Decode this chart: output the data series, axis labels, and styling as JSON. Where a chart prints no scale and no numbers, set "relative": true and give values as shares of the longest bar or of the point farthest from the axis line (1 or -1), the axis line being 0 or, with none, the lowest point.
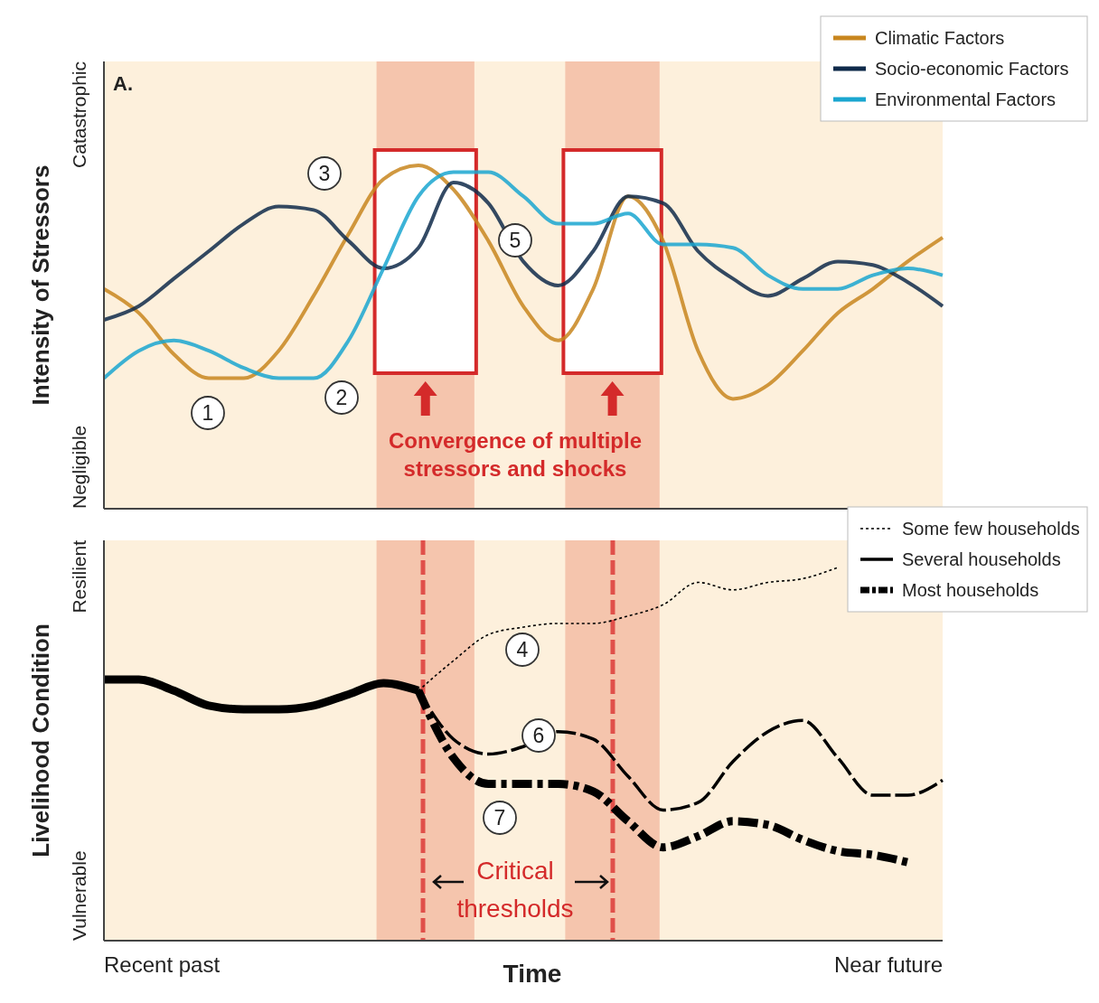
{
  "chart_data": [
    {
      "type": "line",
      "relative": true,
      "ylabel": "Intensity of Stressors",
      "legend": "top right",
      "grid": false,
      "categories": [
        null,
        null,
        null,
        null,
        null,
        null,
        null,
        null,
        null,
        null,
        null,
        null,
        null,
        null,
        null,
        null,
        null,
        null,
        null,
        null,
        null,
        null,
        null,
        null,
        null
      ],
      "series": [
        {
          "name": "Climatic Factors",
          "color": "#c8861e",
          "line_style": "solid",
          "values": [
            0.64,
            0.57,
            0.45,
            0.38,
            0.38,
            0.46,
            0.62,
            0.8,
            0.96,
            1,
            0.93,
            0.78,
            0.59,
            0.49,
            0.64,
            0.91,
            0.78,
            0.46,
            0.32,
            0.36,
            0.46,
            0.57,
            0.64,
            0.72,
            0.79
          ]
        },
        {
          "name": "Socio-economic Factors",
          "color": "#0f2a4a",
          "line_style": "solid",
          "values": [
            0.55,
            0.59,
            0.67,
            0.75,
            0.83,
            0.88,
            0.87,
            0.78,
            0.7,
            0.76,
            0.95,
            0.89,
            0.72,
            0.65,
            0.75,
            0.91,
            0.89,
            0.75,
            0.67,
            0.62,
            0.67,
            0.72,
            0.71,
            0.66,
            0.59
          ]
        },
        {
          "name": "Environmental Factors",
          "color": "#1aa6d0",
          "line_style": "solid",
          "values": [
            0.38,
            0.46,
            0.49,
            0.46,
            0.41,
            0.38,
            0.38,
            0.49,
            0.7,
            0.91,
            0.98,
            0.98,
            0.91,
            0.83,
            0.83,
            0.86,
            0.77,
            0.77,
            0.76,
            0.68,
            0.64,
            0.64,
            0.68,
            0.7,
            0.68
          ]
        }
      ],
      "annotations": [
        "A.",
        "Negligible",
        "Catastrophic",
        "Convergence of multiple stressors and shocks",
        "1",
        "2",
        "3",
        "5"
      ]
    },
    {
      "type": "line",
      "relative": true,
      "ylabel": "Livelihood Condition",
      "xlabel": "Time",
      "legend": "top right",
      "grid": false,
      "categories": [
        null,
        null,
        null,
        null,
        null,
        null,
        null,
        null,
        null,
        null,
        null,
        null,
        null,
        null,
        null,
        null,
        null,
        null,
        null,
        null,
        null,
        null,
        null,
        null,
        null
      ],
      "series": [
        {
          "color": "#000000",
          "line_style": "solid",
          "values": [
            0.7,
            0.7,
            0.67,
            0.63,
            0.62,
            0.62,
            0.63,
            0.66,
            0.69,
            0.67,
            null,
            null,
            null,
            null,
            null,
            null,
            null,
            null,
            null,
            null,
            null,
            null,
            null,
            null,
            null
          ]
        },
        {
          "name": "Some few households",
          "color": "#000000",
          "line_style": "dotted",
          "values": [
            null,
            null,
            null,
            null,
            null,
            null,
            null,
            null,
            null,
            0.67,
            0.75,
            0.82,
            0.84,
            0.85,
            0.85,
            0.87,
            0.9,
            0.96,
            0.94,
            0.96,
            0.97,
            1,
            null,
            null,
            null
          ]
        },
        {
          "name": "Several households",
          "color": "#000000",
          "line_style": "dashed",
          "values": [
            null,
            null,
            null,
            null,
            null,
            null,
            null,
            null,
            null,
            0.67,
            0.54,
            0.5,
            0.52,
            0.56,
            0.54,
            0.44,
            0.35,
            0.37,
            0.48,
            0.56,
            0.59,
            0.49,
            0.39,
            0.39,
            0.43
          ]
        },
        {
          "name": "Most households",
          "color": "#000000",
          "line_style": "dashdot",
          "values": [
            null,
            null,
            null,
            null,
            null,
            null,
            null,
            null,
            null,
            0.67,
            0.49,
            0.42,
            0.42,
            0.42,
            0.4,
            0.32,
            0.25,
            0.28,
            0.32,
            0.31,
            0.27,
            0.24,
            0.23,
            0.21,
            null
          ]
        }
      ],
      "annotations": [
        "Vulnerable",
        "Resilient",
        "Critical thresholds",
        "Recent past",
        "Near future",
        "4",
        "6",
        "7"
      ]
    }
  ]
}
